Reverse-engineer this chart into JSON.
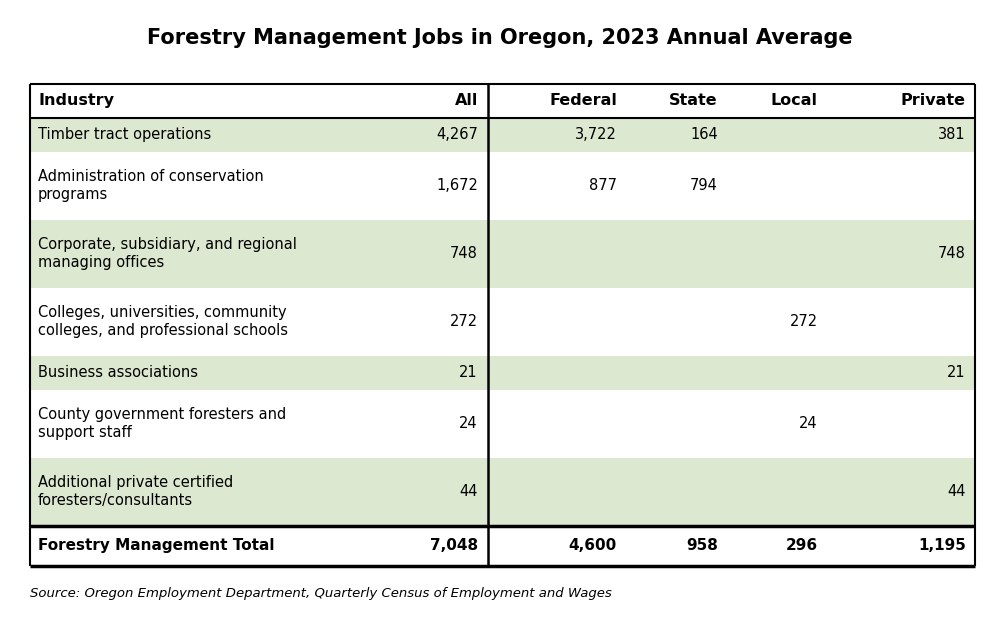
{
  "title": "Forestry Management Jobs in Oregon, 2023 Annual Average",
  "source": "Source: Oregon Employment Department, Quarterly Census of Employment and Wages",
  "rows": [
    {
      "industry": "Timber tract operations",
      "all": "4,267",
      "federal": "3,722",
      "state": "164",
      "local": "",
      "private": "381",
      "shaded": true
    },
    {
      "industry": "Administration of conservation\nprograms",
      "all": "1,672",
      "federal": "877",
      "state": "794",
      "local": "",
      "private": "",
      "shaded": false
    },
    {
      "industry": "Corporate, subsidiary, and regional\nmanaging offices",
      "all": "748",
      "federal": "",
      "state": "",
      "local": "",
      "private": "748",
      "shaded": true
    },
    {
      "industry": "Colleges, universities, community\ncolleges, and professional schools",
      "all": "272",
      "federal": "",
      "state": "",
      "local": "272",
      "private": "",
      "shaded": false
    },
    {
      "industry": "Business associations",
      "all": "21",
      "federal": "",
      "state": "",
      "local": "",
      "private": "21",
      "shaded": true
    },
    {
      "industry": "County government foresters and\nsupport staff",
      "all": "24",
      "federal": "",
      "state": "",
      "local": "24",
      "private": "",
      "shaded": false
    },
    {
      "industry": "Additional private certified\nforesters/consultants",
      "all": "44",
      "federal": "",
      "state": "",
      "local": "",
      "private": "44",
      "shaded": true
    }
  ],
  "total_row": {
    "industry": "Forestry Management Total",
    "all": "7,048",
    "federal": "4,600",
    "state": "958",
    "local": "296",
    "private": "1,195"
  },
  "shaded_color": "#dce8d0",
  "title_fontsize": 15,
  "header_fontsize": 11.5,
  "cell_fontsize": 10.5,
  "source_fontsize": 9.5
}
